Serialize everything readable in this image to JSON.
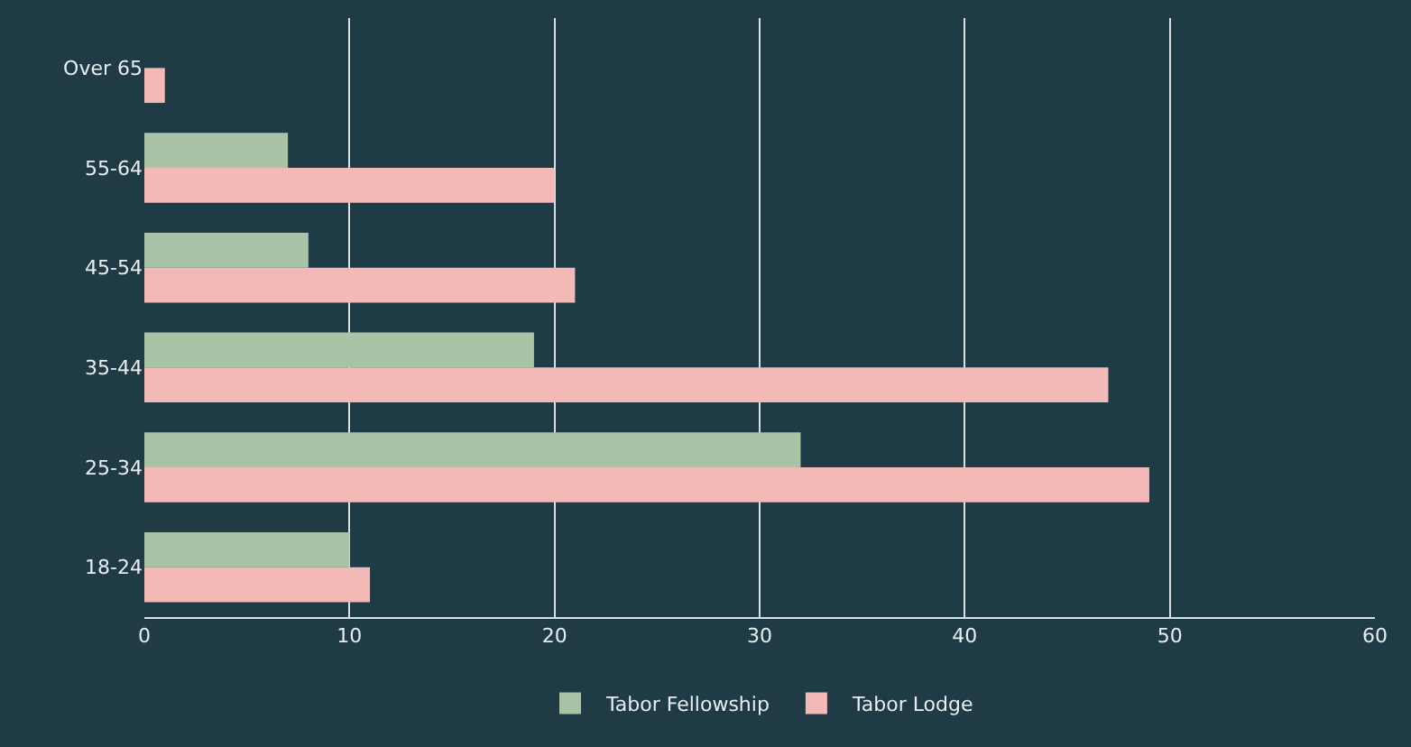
{
  "chart_data": {
    "type": "bar",
    "orientation": "horizontal",
    "categories": [
      "Over 65",
      "55-64",
      "45-54",
      "35-44",
      "25-34",
      "18-24"
    ],
    "series": [
      {
        "name": "Tabor Fellowship",
        "color": "#a9c3a6",
        "values": [
          0,
          7,
          8,
          19,
          32,
          10
        ]
      },
      {
        "name": "Tabor Lodge",
        "color": "#f3b9b6",
        "values": [
          1,
          20,
          21,
          47,
          49,
          11
        ]
      }
    ],
    "xlim": [
      0,
      60
    ],
    "xticks": [
      0,
      10,
      20,
      30,
      40,
      50,
      60
    ],
    "grid": "x",
    "legend": "bottom"
  }
}
